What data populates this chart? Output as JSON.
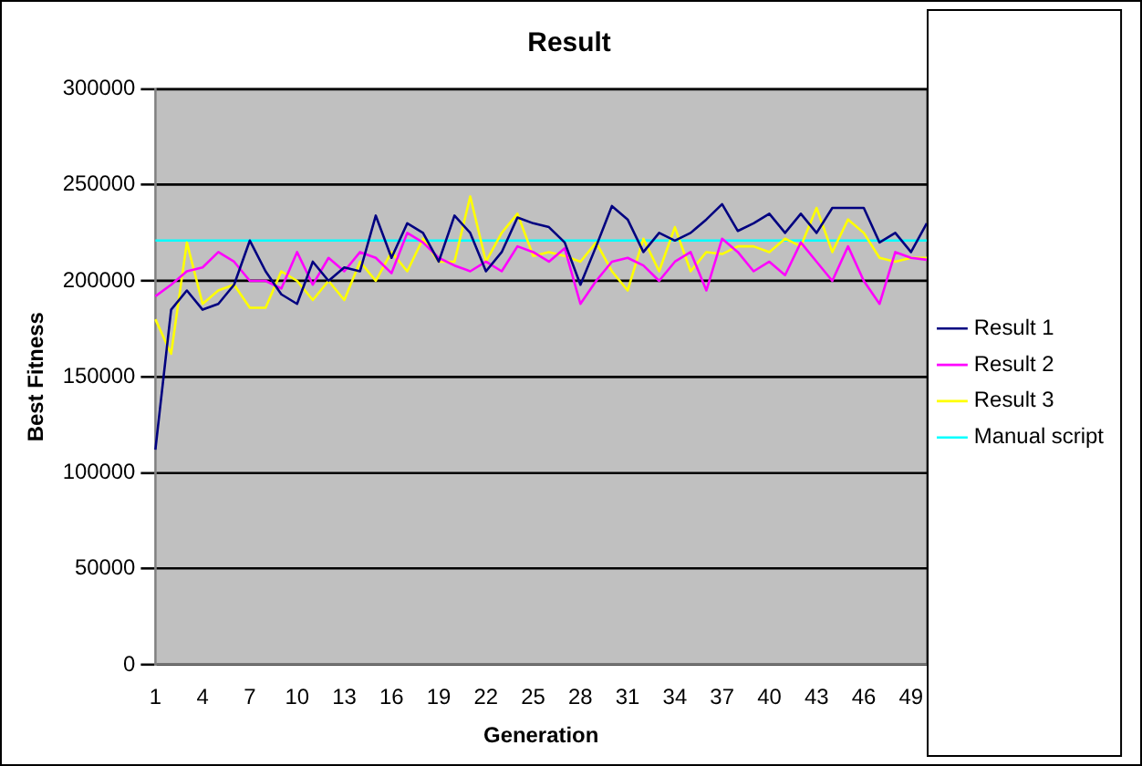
{
  "chart_data": {
    "type": "line",
    "title": "Result",
    "xlabel": "Generation",
    "ylabel": "Best Fitness",
    "categories": [
      "1",
      null,
      null,
      "4",
      null,
      null,
      "7",
      null,
      null,
      "10",
      null,
      null,
      "13",
      null,
      null,
      "16",
      null,
      null,
      "19",
      null,
      null,
      "22",
      null,
      null,
      "25",
      null,
      null,
      "28",
      null,
      null,
      "31",
      null,
      null,
      "34",
      null,
      null,
      "37",
      null,
      null,
      "40",
      null,
      null,
      "43",
      null,
      null,
      "46",
      null,
      null,
      "49",
      null
    ],
    "series": [
      {
        "name": "Result 1",
        "color": "#000080",
        "values": [
          112000,
          185000,
          195000,
          185000,
          188000,
          198000,
          221000,
          205000,
          193000,
          188000,
          210000,
          200000,
          207000,
          205000,
          234000,
          212000,
          230000,
          225000,
          210000,
          234000,
          225000,
          205000,
          215000,
          233000,
          230000,
          228000,
          220000,
          198000,
          218000,
          239000,
          232000,
          215000,
          225000,
          221000,
          225000,
          232000,
          240000,
          226000,
          230000,
          235000,
          225000,
          235000,
          225000,
          238000,
          238000,
          238000,
          220000,
          225000,
          215000,
          230000
        ]
      },
      {
        "name": "Result 2",
        "color": "#ff00ff",
        "values": [
          192000,
          198000,
          205000,
          207000,
          215000,
          210000,
          200000,
          200000,
          196000,
          215000,
          198000,
          212000,
          205000,
          215000,
          212000,
          204000,
          225000,
          220000,
          212000,
          208000,
          205000,
          210000,
          205000,
          218000,
          215000,
          210000,
          217000,
          188000,
          200000,
          210000,
          212000,
          208000,
          200000,
          210000,
          215000,
          195000,
          222000,
          215000,
          205000,
          210000,
          203000,
          220000,
          210000,
          200000,
          218000,
          200000,
          188000,
          215000,
          212000,
          211000
        ]
      },
      {
        "name": "Result 3",
        "color": "#ffff00",
        "values": [
          180000,
          162000,
          220000,
          188000,
          195000,
          198000,
          186000,
          186000,
          205000,
          200000,
          190000,
          200000,
          190000,
          210000,
          200000,
          215000,
          205000,
          222000,
          210000,
          210000,
          244000,
          210000,
          225000,
          235000,
          213000,
          215000,
          213000,
          210000,
          220000,
          205000,
          195000,
          222000,
          205000,
          228000,
          205000,
          215000,
          214000,
          218000,
          218000,
          215000,
          222000,
          218000,
          238000,
          215000,
          232000,
          225000,
          212000,
          210000,
          212000,
          212000
        ]
      },
      {
        "name": "Manual script",
        "color": "#00ffff",
        "values": [
          221000,
          221000,
          221000,
          221000,
          221000,
          221000,
          221000,
          221000,
          221000,
          221000,
          221000,
          221000,
          221000,
          221000,
          221000,
          221000,
          221000,
          221000,
          221000,
          221000,
          221000,
          221000,
          221000,
          221000,
          221000,
          221000,
          221000,
          221000,
          221000,
          221000,
          221000,
          221000,
          221000,
          221000,
          221000,
          221000,
          221000,
          221000,
          221000,
          221000,
          221000,
          221000,
          221000,
          221000,
          221000,
          221000,
          221000,
          221000,
          221000,
          221000
        ]
      }
    ],
    "ylim": [
      0,
      300000
    ],
    "yticks": [
      0,
      50000,
      100000,
      150000,
      200000,
      250000,
      300000
    ],
    "grid": "y",
    "legend": "right",
    "marker": "none",
    "line_style": "solid"
  }
}
